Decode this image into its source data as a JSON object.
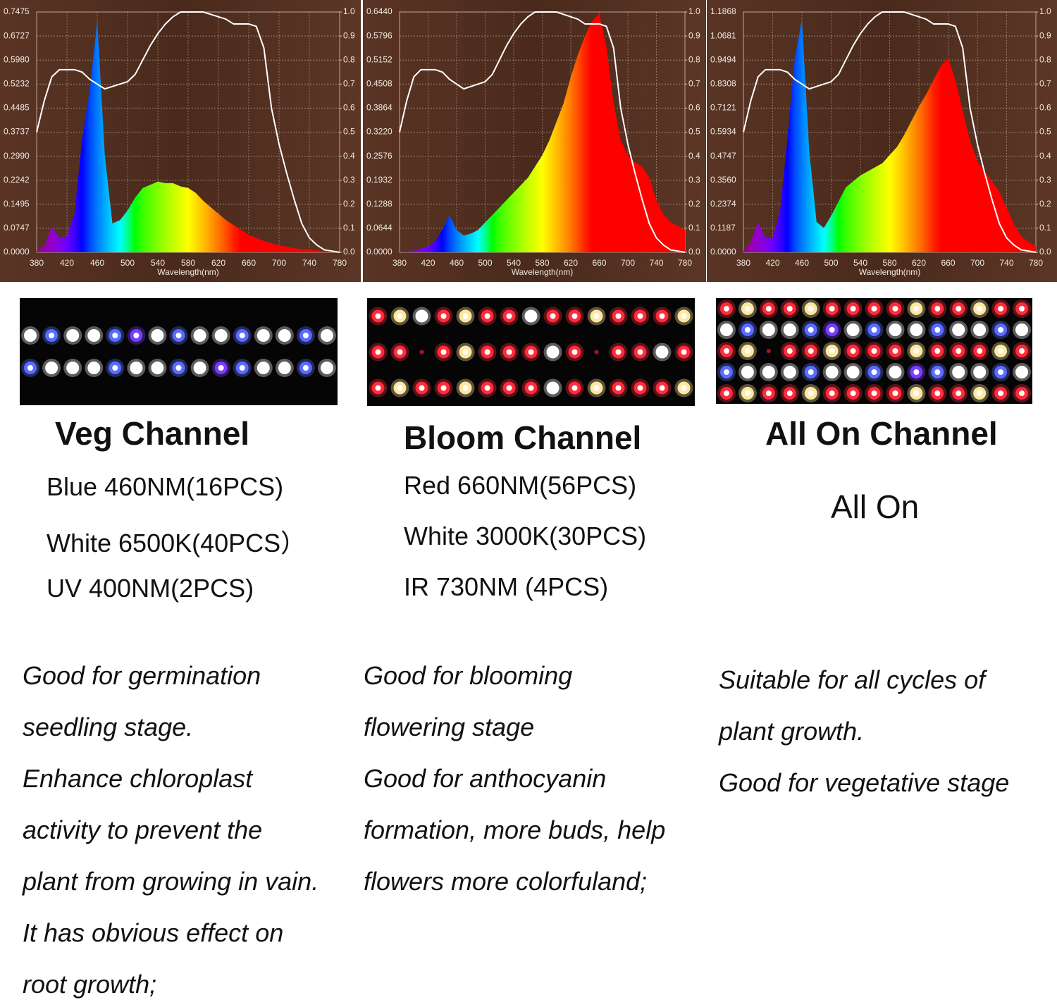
{
  "chart_data": [
    {
      "type": "area",
      "xlabel": "Wavelength(nm)",
      "xlim": [
        380,
        780
      ],
      "xticks": [
        380,
        420,
        460,
        500,
        540,
        580,
        620,
        660,
        700,
        740,
        780
      ],
      "ylim": [
        0,
        0.7475
      ],
      "yticks": [
        {
          "value": 0,
          "label": "0.0000"
        },
        0.0747,
        0.1495,
        0.2242,
        {
          "value": 0.299,
          "label": "0.2990"
        },
        0.3737,
        0.4485,
        0.5232,
        {
          "value": 0.598,
          "label": "0.5980"
        },
        0.6727,
        0.7475
      ],
      "y2lim": [
        0,
        1
      ],
      "y2ticks": [
        {
          "value": 0,
          "label": "0.0"
        },
        0.1,
        0.2,
        0.3,
        0.4,
        0.5,
        0.6,
        0.7,
        0.8,
        0.9,
        {
          "value": 1,
          "label": "1.0"
        }
      ],
      "grid": true,
      "x": [
        380,
        390,
        400,
        410,
        420,
        430,
        440,
        450,
        460,
        470,
        480,
        490,
        500,
        510,
        520,
        530,
        540,
        550,
        560,
        570,
        580,
        590,
        600,
        610,
        620,
        630,
        640,
        650,
        660,
        670,
        680,
        690,
        700,
        710,
        720,
        730,
        740,
        750,
        760,
        770,
        780
      ],
      "series": [
        {
          "fill": "spectrum",
          "values": [
            0.005,
            0.02,
            0.08,
            0.045,
            0.05,
            0.12,
            0.35,
            0.5,
            0.72,
            0.3,
            0.09,
            0.1,
            0.13,
            0.17,
            0.2,
            0.21,
            0.22,
            0.215,
            0.215,
            0.205,
            0.2,
            0.185,
            0.16,
            0.14,
            0.12,
            0.1,
            0.085,
            0.07,
            0.055,
            0.045,
            0.035,
            0.028,
            0.022,
            0.017,
            0.013,
            0.01,
            0.008,
            0.006,
            0.004,
            0.003,
            0.002
          ]
        },
        {
          "axis": "y2",
          "color": "#ffffff",
          "values": [
            0.5,
            0.63,
            0.73,
            0.76,
            0.76,
            0.76,
            0.75,
            0.72,
            0.7,
            0.68,
            0.69,
            0.7,
            0.71,
            0.74,
            0.8,
            0.86,
            0.91,
            0.95,
            0.98,
            1,
            1,
            1,
            1,
            0.99,
            0.98,
            0.97,
            0.95,
            0.95,
            0.95,
            0.94,
            0.85,
            0.6,
            0.45,
            0.33,
            0.22,
            0.12,
            0.06,
            0.03,
            0.01,
            0.005,
            0
          ]
        }
      ]
    },
    {
      "type": "area",
      "xlabel": "Wavelength(nm)",
      "xlim": [
        380,
        780
      ],
      "xticks": [
        380,
        420,
        460,
        500,
        540,
        580,
        620,
        660,
        700,
        740,
        780
      ],
      "ylim": [
        0,
        0.644
      ],
      "yticks": [
        {
          "value": 0,
          "label": "0.0000"
        },
        0.0644,
        0.1288,
        0.1932,
        0.2576,
        {
          "value": 0.322,
          "label": "0.3220"
        },
        0.3864,
        0.4508,
        0.5152,
        0.5796,
        {
          "value": 0.644,
          "label": "0.6440"
        }
      ],
      "y2lim": [
        0,
        1
      ],
      "y2ticks": [
        {
          "value": 0,
          "label": "0.0"
        },
        0.1,
        0.2,
        0.3,
        0.4,
        0.5,
        0.6,
        0.7,
        0.8,
        0.9,
        {
          "value": 1,
          "label": "1.0"
        }
      ],
      "grid": true,
      "x": [
        380,
        390,
        400,
        410,
        420,
        430,
        440,
        450,
        460,
        470,
        480,
        490,
        500,
        510,
        520,
        530,
        540,
        550,
        560,
        570,
        580,
        590,
        600,
        610,
        620,
        630,
        640,
        650,
        660,
        670,
        680,
        690,
        700,
        710,
        720,
        730,
        740,
        750,
        760,
        770,
        780
      ],
      "series": [
        {
          "fill": "spectrum",
          "values": [
            0,
            0.002,
            0.005,
            0.01,
            0.015,
            0.03,
            0.06,
            0.1,
            0.06,
            0.045,
            0.05,
            0.06,
            0.08,
            0.1,
            0.12,
            0.14,
            0.16,
            0.18,
            0.2,
            0.23,
            0.26,
            0.3,
            0.35,
            0.4,
            0.47,
            0.53,
            0.58,
            0.62,
            0.64,
            0.55,
            0.4,
            0.3,
            0.26,
            0.24,
            0.23,
            0.2,
            0.14,
            0.1,
            0.08,
            0.07,
            0.06
          ]
        },
        {
          "axis": "y2",
          "color": "#ffffff",
          "values": [
            0.5,
            0.63,
            0.73,
            0.76,
            0.76,
            0.76,
            0.75,
            0.72,
            0.7,
            0.68,
            0.69,
            0.7,
            0.71,
            0.74,
            0.8,
            0.86,
            0.91,
            0.95,
            0.98,
            1,
            1,
            1,
            1,
            0.99,
            0.98,
            0.97,
            0.95,
            0.95,
            0.95,
            0.94,
            0.85,
            0.6,
            0.45,
            0.33,
            0.22,
            0.12,
            0.06,
            0.03,
            0.01,
            0.005,
            0
          ]
        }
      ]
    },
    {
      "type": "area",
      "xlabel": "Wavelength(nm)",
      "xlim": [
        380,
        780
      ],
      "xticks": [
        380,
        420,
        460,
        500,
        540,
        580,
        620,
        660,
        700,
        740,
        780
      ],
      "ylim": [
        0,
        1.1868
      ],
      "yticks": [
        {
          "value": 0,
          "label": "0.0000"
        },
        0.1187,
        0.2374,
        {
          "value": 0.356,
          "label": "0.3560"
        },
        0.4747,
        0.5934,
        0.7121,
        0.8308,
        0.9494,
        1.0681,
        1.1868
      ],
      "y2lim": [
        0,
        1
      ],
      "y2ticks": [
        {
          "value": 0,
          "label": "0.0"
        },
        0.1,
        0.2,
        0.3,
        0.4,
        0.5,
        0.6,
        0.7,
        0.8,
        0.9,
        {
          "value": 1,
          "label": "1.0"
        }
      ],
      "grid": true,
      "x": [
        380,
        390,
        400,
        410,
        420,
        430,
        440,
        450,
        460,
        470,
        480,
        490,
        500,
        510,
        520,
        530,
        540,
        550,
        560,
        570,
        580,
        590,
        600,
        610,
        620,
        630,
        640,
        650,
        660,
        670,
        680,
        690,
        700,
        710,
        720,
        730,
        740,
        750,
        760,
        770,
        780
      ],
      "series": [
        {
          "fill": "spectrum",
          "values": [
            0.01,
            0.05,
            0.15,
            0.07,
            0.07,
            0.2,
            0.55,
            0.95,
            1.15,
            0.5,
            0.15,
            0.12,
            0.18,
            0.25,
            0.32,
            0.35,
            0.38,
            0.4,
            0.42,
            0.44,
            0.48,
            0.52,
            0.58,
            0.65,
            0.72,
            0.78,
            0.85,
            0.92,
            0.96,
            0.85,
            0.7,
            0.55,
            0.45,
            0.4,
            0.35,
            0.3,
            0.22,
            0.14,
            0.08,
            0.05,
            0.03
          ]
        },
        {
          "axis": "y2",
          "color": "#ffffff",
          "values": [
            0.5,
            0.63,
            0.73,
            0.76,
            0.76,
            0.76,
            0.75,
            0.72,
            0.7,
            0.68,
            0.69,
            0.7,
            0.71,
            0.74,
            0.8,
            0.86,
            0.91,
            0.95,
            0.98,
            1,
            1,
            1,
            1,
            0.99,
            0.98,
            0.97,
            0.95,
            0.95,
            0.95,
            0.94,
            0.85,
            0.6,
            0.45,
            0.33,
            0.22,
            0.12,
            0.06,
            0.03,
            0.01,
            0.005,
            0
          ]
        }
      ]
    }
  ],
  "panels": [
    {
      "heading": "Veg Channel",
      "specs": [
        "Blue 460NM(16PCS)",
        "White 6500K(40PCS）",
        "UV 400NM(2PCS)"
      ],
      "description": [
        "Good for germination",
        "seedling stage.",
        "Enhance chloroplast",
        "activity to prevent the",
        "plant from growing in vain.",
        "It has obvious effect on",
        "root growth;"
      ]
    },
    {
      "heading": "Bloom Channel",
      "specs": [
        "Red 660NM(56PCS)",
        "White 3000K(30PCS)",
        "IR 730NM (4PCS)"
      ],
      "description": [
        "Good for blooming",
        "flowering stage",
        "Good for anthocyanin",
        "formation, more buds, help",
        "flowers more colorfuland;"
      ]
    },
    {
      "heading": "All On Channel",
      "specs": [
        "All On"
      ],
      "description": [
        "Suitable for all cycles of",
        "plant growth.",
        "Good for vegetative stage"
      ]
    }
  ]
}
